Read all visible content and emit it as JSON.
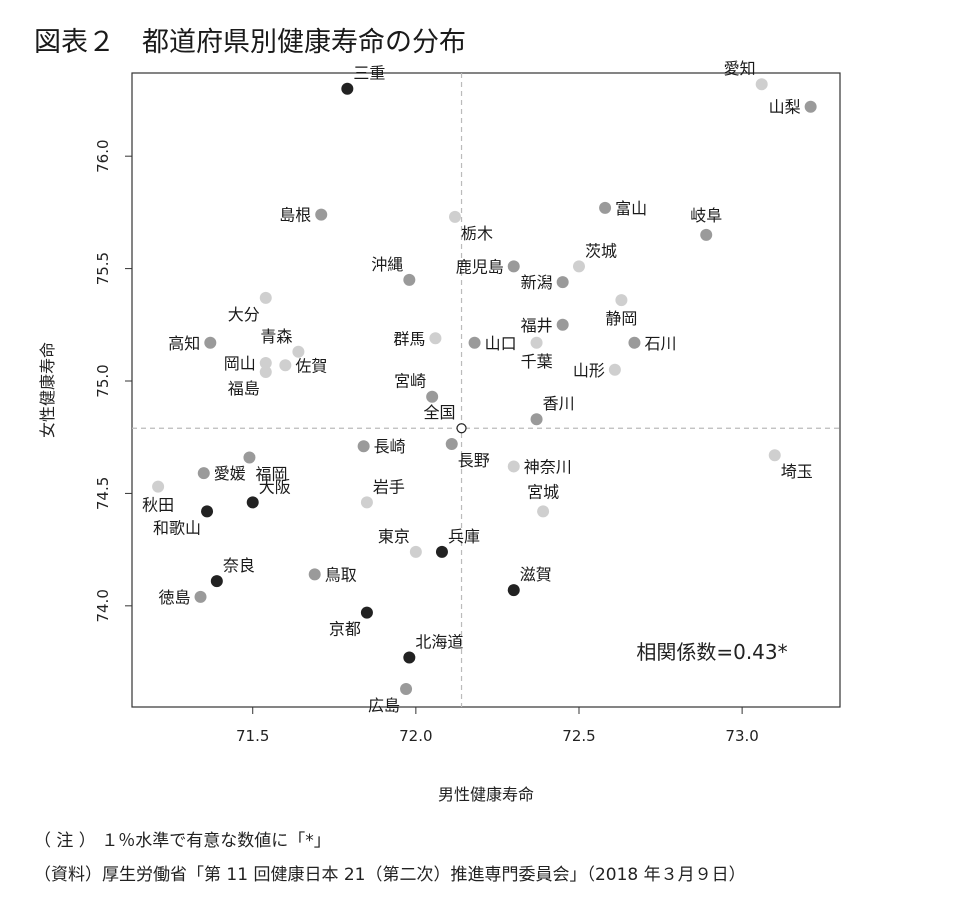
{
  "figure": {
    "title": "図表２　都道府県別健康寿命の分布",
    "note": "（ 注 ） １％水準で有意な数値に「*」",
    "source": "（資料）厚生労働省「第 11 回健康日本 21（第二次）推進専門委員会」（2018 年３月９日）"
  },
  "chart_data": {
    "type": "scatter",
    "xlabel": "男性健康寿命",
    "ylabel": "女性健康寿命",
    "xlim": [
      71.13,
      73.3
    ],
    "ylim": [
      73.55,
      76.37
    ],
    "xticks": [
      71.5,
      72.0,
      72.5,
      73.0
    ],
    "yticks": [
      74.0,
      74.5,
      75.0,
      75.5,
      76.0
    ],
    "xtick_labels": [
      "71.5",
      "72.0",
      "72.5",
      "73.0"
    ],
    "ytick_labels": [
      "74.0",
      "74.5",
      "75.0",
      "75.5",
      "76.0"
    ],
    "grid": false,
    "reference_lines": {
      "x": 72.14,
      "y": 74.79
    },
    "annotation": "相関係数=0.43*",
    "colors": {
      "dark": "#222222",
      "mid": "#9a9a9a",
      "light": "#cfcfcf",
      "axis": "#333333",
      "reference": "#bbbbbb"
    },
    "points": [
      {
        "label": "三重",
        "x": 71.79,
        "y": 76.3,
        "shade": "dark",
        "pos": "ne"
      },
      {
        "label": "愛知",
        "x": 73.06,
        "y": 76.32,
        "shade": "light",
        "pos": "nw"
      },
      {
        "label": "山梨",
        "x": 73.21,
        "y": 76.22,
        "shade": "mid",
        "pos": "w"
      },
      {
        "label": "島根",
        "x": 71.71,
        "y": 75.74,
        "shade": "mid",
        "pos": "w"
      },
      {
        "label": "栃木",
        "x": 72.12,
        "y": 75.73,
        "shade": "light",
        "pos": "se"
      },
      {
        "label": "富山",
        "x": 72.58,
        "y": 75.77,
        "shade": "mid",
        "pos": "e"
      },
      {
        "label": "岐阜",
        "x": 72.89,
        "y": 75.65,
        "shade": "mid",
        "pos": "n"
      },
      {
        "label": "沖縄",
        "x": 71.98,
        "y": 75.45,
        "shade": "mid",
        "pos": "nw"
      },
      {
        "label": "鹿児島",
        "x": 72.3,
        "y": 75.51,
        "shade": "mid",
        "pos": "w"
      },
      {
        "label": "茨城",
        "x": 72.5,
        "y": 75.51,
        "shade": "light",
        "pos": "ne"
      },
      {
        "label": "新潟",
        "x": 72.45,
        "y": 75.44,
        "shade": "mid",
        "pos": "w"
      },
      {
        "label": "大分",
        "x": 71.54,
        "y": 75.37,
        "shade": "light",
        "pos": "sw"
      },
      {
        "label": "静岡",
        "x": 72.63,
        "y": 75.36,
        "shade": "light",
        "pos": "s"
      },
      {
        "label": "福井",
        "x": 72.45,
        "y": 75.25,
        "shade": "mid",
        "pos": "w"
      },
      {
        "label": "群馬",
        "x": 72.06,
        "y": 75.19,
        "shade": "light",
        "pos": "w"
      },
      {
        "label": "高知",
        "x": 71.37,
        "y": 75.17,
        "shade": "mid",
        "pos": "w"
      },
      {
        "label": "青森",
        "x": 71.64,
        "y": 75.13,
        "shade": "light",
        "pos": "nw"
      },
      {
        "label": "山口",
        "x": 72.18,
        "y": 75.17,
        "shade": "mid",
        "pos": "e"
      },
      {
        "label": "千葉",
        "x": 72.37,
        "y": 75.17,
        "shade": "light",
        "pos": "s"
      },
      {
        "label": "石川",
        "x": 72.67,
        "y": 75.17,
        "shade": "mid",
        "pos": "e"
      },
      {
        "label": "岡山",
        "x": 71.54,
        "y": 75.08,
        "shade": "light",
        "pos": "w"
      },
      {
        "label": "佐賀",
        "x": 71.6,
        "y": 75.07,
        "shade": "light",
        "pos": "e"
      },
      {
        "label": "山形",
        "x": 72.61,
        "y": 75.05,
        "shade": "light",
        "pos": "w"
      },
      {
        "label": "福島",
        "x": 71.54,
        "y": 75.04,
        "shade": "light",
        "pos": "sw"
      },
      {
        "label": "宮崎",
        "x": 72.05,
        "y": 74.93,
        "shade": "mid",
        "pos": "nw"
      },
      {
        "label": "香川",
        "x": 72.37,
        "y": 74.83,
        "shade": "mid",
        "pos": "ne"
      },
      {
        "label": "全国",
        "x": 72.14,
        "y": 74.79,
        "shade": "hollow",
        "pos": "nw"
      },
      {
        "label": "長崎",
        "x": 71.84,
        "y": 74.71,
        "shade": "mid",
        "pos": "e"
      },
      {
        "label": "長野",
        "x": 72.11,
        "y": 74.72,
        "shade": "mid",
        "pos": "se"
      },
      {
        "label": "埼玉",
        "x": 73.1,
        "y": 74.67,
        "shade": "light",
        "pos": "se"
      },
      {
        "label": "福岡",
        "x": 71.49,
        "y": 74.66,
        "shade": "mid",
        "pos": "se"
      },
      {
        "label": "神奈川",
        "x": 72.3,
        "y": 74.62,
        "shade": "light",
        "pos": "e"
      },
      {
        "label": "愛媛",
        "x": 71.35,
        "y": 74.59,
        "shade": "mid",
        "pos": "e"
      },
      {
        "label": "秋田",
        "x": 71.21,
        "y": 74.53,
        "shade": "light",
        "pos": "s"
      },
      {
        "label": "大阪",
        "x": 71.5,
        "y": 74.46,
        "shade": "dark",
        "pos": "ne"
      },
      {
        "label": "岩手",
        "x": 71.85,
        "y": 74.46,
        "shade": "light",
        "pos": "ne"
      },
      {
        "label": "宮城",
        "x": 72.39,
        "y": 74.42,
        "shade": "light",
        "pos": "n"
      },
      {
        "label": "和歌山",
        "x": 71.36,
        "y": 74.42,
        "shade": "dark",
        "pos": "sw"
      },
      {
        "label": "東京",
        "x": 72.0,
        "y": 74.24,
        "shade": "light",
        "pos": "nw"
      },
      {
        "label": "兵庫",
        "x": 72.08,
        "y": 74.24,
        "shade": "dark",
        "pos": "ne"
      },
      {
        "label": "奈良",
        "x": 71.39,
        "y": 74.11,
        "shade": "dark",
        "pos": "ne"
      },
      {
        "label": "鳥取",
        "x": 71.69,
        "y": 74.14,
        "shade": "mid",
        "pos": "e"
      },
      {
        "label": "滋賀",
        "x": 72.3,
        "y": 74.07,
        "shade": "dark",
        "pos": "ne"
      },
      {
        "label": "徳島",
        "x": 71.34,
        "y": 74.04,
        "shade": "mid",
        "pos": "w"
      },
      {
        "label": "京都",
        "x": 71.85,
        "y": 73.97,
        "shade": "dark",
        "pos": "sw"
      },
      {
        "label": "北海道",
        "x": 71.98,
        "y": 73.77,
        "shade": "dark",
        "pos": "ne"
      },
      {
        "label": "広島",
        "x": 71.97,
        "y": 73.63,
        "shade": "mid",
        "pos": "sw"
      }
    ]
  }
}
